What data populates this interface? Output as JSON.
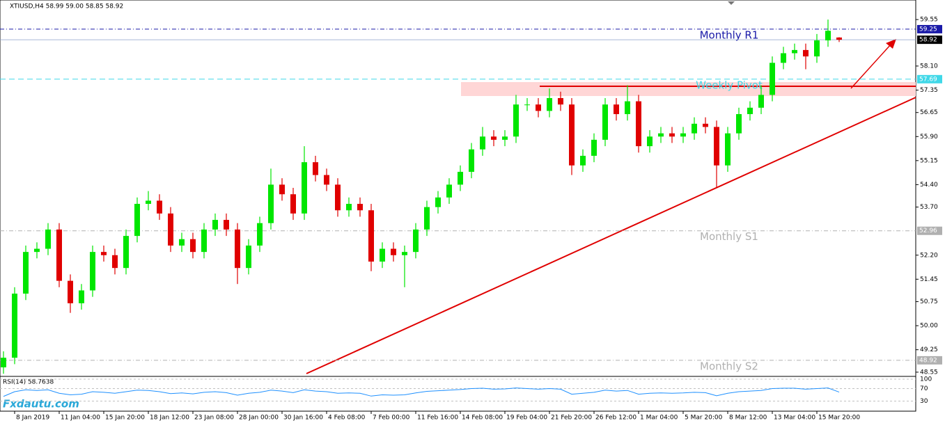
{
  "chart_data": {
    "type": "candlestick",
    "title": "XTIUSD,H4  58.99 59.00 58.85 58.92",
    "watermark": "Fxdautu.com",
    "categories": [
      null,
      "8 Jan 2019",
      null,
      null,
      null,
      "11 Jan 04:00",
      null,
      null,
      null,
      "15 Jan 20:00",
      null,
      null,
      null,
      "18 Jan 12:00",
      null,
      null,
      null,
      "23 Jan 08:00",
      null,
      null,
      null,
      "28 Jan 00:00",
      null,
      null,
      null,
      "30 Jan 16:00",
      null,
      null,
      null,
      "4 Feb 08:00",
      null,
      null,
      null,
      "7 Feb 00:00",
      null,
      null,
      null,
      "11 Feb 16:00",
      null,
      null,
      null,
      "14 Feb 08:00",
      null,
      null,
      null,
      "19 Feb 04:00",
      null,
      null,
      null,
      "21 Feb 20:00",
      null,
      null,
      null,
      "26 Feb 12:00",
      null,
      null,
      null,
      "1 Mar 04:00",
      null,
      null,
      null,
      "5 Mar 20:00",
      null,
      null,
      null,
      "8 Mar 12:00",
      null,
      null,
      null,
      "13 Mar 04:00",
      null,
      null,
      null,
      "15 Mar 20:00",
      null,
      null
    ],
    "candles": {
      "up_color": "#00e600",
      "down_color": "#e00000",
      "open": [
        48.7,
        49.0,
        51.0,
        52.3,
        52.4,
        53.0,
        51.4,
        50.7,
        51.1,
        52.3,
        52.2,
        51.8,
        52.8,
        53.8,
        53.9,
        53.5,
        52.5,
        52.7,
        52.3,
        53.0,
        53.3,
        53.0,
        51.8,
        52.5,
        53.2,
        54.4,
        54.1,
        53.5,
        55.1,
        54.7,
        54.4,
        53.6,
        53.8,
        53.6,
        52.0,
        52.4,
        52.2,
        52.3,
        53.0,
        53.7,
        54.0,
        54.4,
        54.8,
        55.5,
        55.9,
        55.8,
        55.9,
        56.9,
        56.9,
        56.7,
        57.1,
        56.9,
        55.0,
        55.3,
        55.8,
        56.9,
        56.6,
        57.0,
        55.6,
        55.9,
        56.0,
        55.9,
        56.0,
        56.3,
        56.2,
        55.0,
        56.0,
        56.6,
        56.8,
        57.2,
        58.2,
        58.5,
        58.6,
        58.4,
        58.9,
        58.99
      ],
      "high": [
        49.2,
        51.2,
        52.5,
        52.6,
        53.2,
        53.2,
        51.6,
        51.3,
        52.5,
        52.5,
        52.4,
        53.0,
        54.0,
        54.2,
        54.1,
        53.7,
        52.9,
        52.9,
        53.2,
        53.5,
        53.5,
        53.2,
        52.7,
        53.4,
        54.9,
        54.6,
        54.3,
        55.6,
        55.3,
        54.9,
        54.6,
        54.0,
        54.0,
        53.8,
        52.6,
        52.6,
        52.5,
        53.2,
        53.9,
        54.2,
        54.6,
        55.0,
        55.7,
        56.2,
        56.1,
        56.1,
        57.2,
        57.1,
        57.1,
        57.4,
        57.3,
        57.1,
        55.5,
        56.0,
        57.1,
        57.1,
        57.5,
        57.2,
        56.1,
        56.2,
        56.2,
        56.2,
        56.5,
        56.5,
        56.4,
        56.2,
        56.8,
        57.0,
        57.5,
        58.4,
        58.7,
        58.8,
        58.8,
        59.1,
        59.55,
        59.0
      ],
      "low": [
        48.5,
        48.8,
        50.8,
        52.1,
        52.2,
        51.2,
        50.4,
        50.5,
        50.9,
        52.0,
        51.6,
        51.6,
        52.6,
        53.6,
        53.3,
        52.3,
        52.3,
        52.1,
        52.1,
        52.8,
        52.8,
        51.3,
        51.6,
        52.3,
        53.0,
        53.9,
        53.3,
        53.3,
        54.5,
        54.2,
        53.4,
        53.4,
        53.4,
        51.7,
        51.8,
        52.0,
        51.2,
        52.1,
        52.8,
        53.5,
        53.8,
        54.2,
        54.6,
        55.3,
        55.6,
        55.6,
        55.7,
        56.7,
        56.5,
        56.5,
        56.7,
        54.7,
        54.8,
        55.1,
        55.6,
        56.4,
        56.4,
        55.4,
        55.4,
        55.7,
        55.7,
        55.7,
        55.8,
        56.0,
        54.3,
        54.8,
        55.8,
        56.4,
        56.6,
        57.0,
        58.0,
        58.3,
        58.0,
        58.2,
        58.7,
        58.85
      ],
      "close": [
        49.0,
        51.0,
        52.3,
        52.4,
        53.0,
        51.4,
        50.7,
        51.1,
        52.3,
        52.2,
        51.8,
        52.8,
        53.8,
        53.9,
        53.5,
        52.5,
        52.7,
        52.3,
        53.0,
        53.3,
        53.0,
        51.8,
        52.5,
        53.2,
        54.4,
        54.1,
        53.5,
        55.1,
        54.7,
        54.4,
        53.6,
        53.8,
        53.6,
        52.0,
        52.4,
        52.2,
        52.3,
        53.0,
        53.7,
        54.0,
        54.4,
        54.8,
        55.5,
        55.9,
        55.8,
        55.9,
        56.9,
        56.9,
        56.7,
        57.1,
        56.9,
        55.0,
        55.3,
        55.8,
        56.9,
        56.6,
        57.0,
        55.6,
        55.9,
        56.0,
        55.9,
        56.0,
        56.3,
        56.2,
        55.0,
        56.0,
        56.6,
        56.8,
        57.2,
        58.2,
        58.5,
        58.6,
        58.4,
        58.9,
        59.2,
        58.92
      ]
    },
    "ylim": [
      48.44,
      60.16
    ],
    "yticks": [
      59.55,
      {
        "value": 58.1,
        "label": "58.10"
      },
      57.35,
      56.65,
      {
        "value": 55.9,
        "label": "55.90"
      },
      55.15,
      {
        "value": 54.4,
        "label": "54.40"
      },
      {
        "value": 53.7,
        "label": "53.70"
      },
      {
        "value": 52.2,
        "label": "52.20"
      },
      51.45,
      50.75,
      {
        "value": 50,
        "label": "50.00"
      },
      49.25,
      48.55
    ],
    "last_price": 58.92,
    "levels": [
      {
        "name": "Monthly R1",
        "value": 59.25,
        "color": "#1a1aa8",
        "dash": "6 3 1 3"
      },
      {
        "name": "Weekly Pivot",
        "value": 57.69,
        "color": "#40d8e8",
        "dash": "8 5"
      },
      {
        "name": "Monthly S1",
        "value": 52.96,
        "color": "#b0b0b0",
        "dash": "6 3 1 3"
      },
      {
        "name": "Monthly S2",
        "value": 48.92,
        "color": "#b0b0b0",
        "dash": "6 3 1 3"
      }
    ],
    "indicator": {
      "title": "RSI(14) 58.7638",
      "color": "#1e90ff",
      "ylim": [
        0,
        100
      ],
      "yticks": [
        100,
        70,
        30
      ],
      "values": [
        45,
        60,
        66,
        64,
        66,
        55,
        50,
        52,
        60,
        58,
        55,
        60,
        65,
        64,
        60,
        54,
        56,
        53,
        58,
        60,
        57,
        49,
        55,
        58,
        65,
        62,
        57,
        66,
        62,
        60,
        55,
        56,
        55,
        46,
        50,
        49,
        50,
        56,
        61,
        63,
        65,
        67,
        70,
        71,
        68,
        69,
        72,
        70,
        68,
        70,
        68,
        52,
        55,
        58,
        65,
        62,
        64,
        52,
        55,
        56,
        55,
        56,
        58,
        57,
        47,
        55,
        60,
        62,
        64,
        70,
        71,
        71,
        68,
        70,
        72,
        58.7638
      ]
    }
  }
}
